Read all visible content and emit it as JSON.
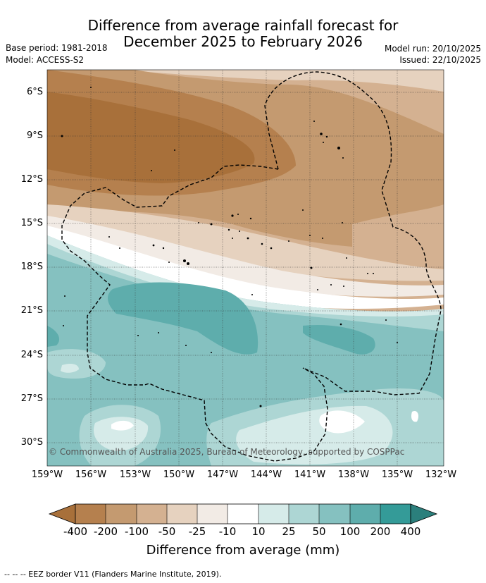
{
  "title_line1": "Difference from average rainfall forecast for",
  "title_line2": "December 2025 to February 2026",
  "base_period": "Base period: 1981-2018",
  "model": "Model: ACCESS-S2",
  "model_run": "Model run: 20/10/2025",
  "issued": "Issued: 22/10/2025",
  "lat_labels": [
    "6°S",
    "9°S",
    "12°S",
    "15°S",
    "18°S",
    "21°S",
    "24°S",
    "27°S",
    "30°S"
  ],
  "lon_labels": [
    "159°W",
    "156°W",
    "153°W",
    "150°W",
    "147°W",
    "144°W",
    "141°W",
    "138°W",
    "135°W",
    "132°W"
  ],
  "copyright": "© Commonwealth of Australia 2025, Bureau of Meteorology, supported by COSPPac",
  "colorbar": {
    "title": "Difference from average (mm)",
    "levels": [
      "-400",
      "-200",
      "-100",
      "-50",
      "-25",
      "-10",
      "10",
      "25",
      "50",
      "100",
      "200",
      "400"
    ],
    "colors": [
      "#a8703a",
      "#b5804e",
      "#c49a70",
      "#d4b191",
      "#e6d2bf",
      "#f2ebe5",
      "#ffffff",
      "#d6ebe9",
      "#add6d4",
      "#85c1c0",
      "#5eadac",
      "#349b98",
      "#2b7f7c"
    ]
  },
  "footer": "--  --  -- EEZ border V11 (Flanders Marine Institute, 2019)."
}
